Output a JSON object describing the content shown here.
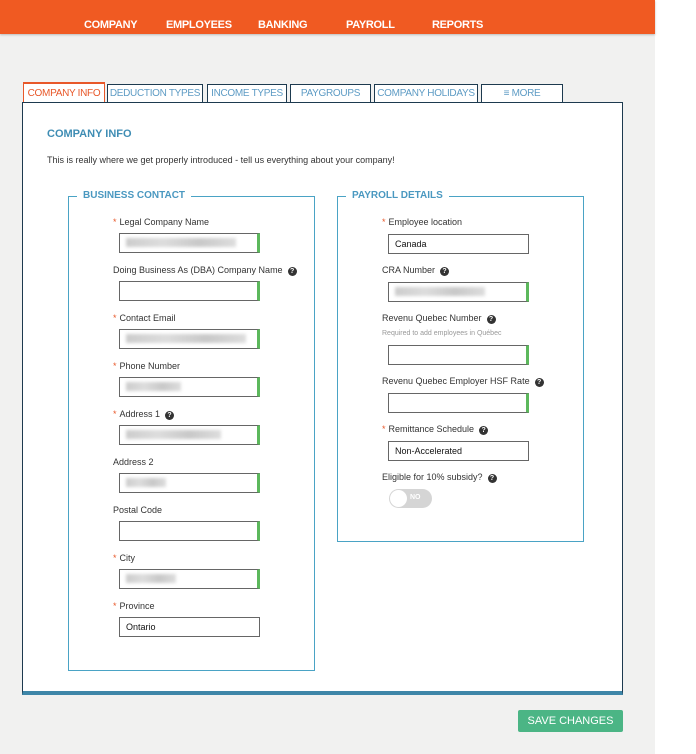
{
  "nav": [
    "COMPANY",
    "EMPLOYEES",
    "BANKING",
    "PAYROLL",
    "REPORTS"
  ],
  "tabs": [
    "COMPANY INFO",
    "DEDUCTION TYPES",
    "INCOME TYPES",
    "PAYGROUPS",
    "COMPANY HOLIDAYS",
    "MORE"
  ],
  "heading": "COMPANY INFO",
  "intro": "This is really where we get properly introduced - tell us everything about your company!",
  "business": {
    "legend": "BUSINESS CONTACT",
    "fields": [
      {
        "label": "Legal Company Name",
        "required": true
      },
      {
        "label": "Doing Business As (DBA) Company Name",
        "help": true
      },
      {
        "label": "Contact Email",
        "required": true
      },
      {
        "label": "Phone Number",
        "required": true
      },
      {
        "label": "Address 1",
        "required": true,
        "help": true
      },
      {
        "label": "Address 2"
      },
      {
        "label": "Postal Code"
      },
      {
        "label": "City",
        "required": true
      },
      {
        "label": "Province",
        "required": true,
        "value": "Ontario"
      }
    ]
  },
  "payroll": {
    "legend": "PAYROLL DETAILS",
    "location_label": "Employee location",
    "location_value": "Canada",
    "cra_label": "CRA Number",
    "rq_label": "Revenu Quebec Number",
    "rq_help": "Required to add employees in Québec",
    "hsf_label": "Revenu Quebec Employer HSF Rate",
    "remit_label": "Remittance Schedule",
    "remit_value": "Non-Accelerated",
    "subsidy_label": "Eligible for 10% subsidy?",
    "subsidy_value": "NO"
  },
  "save": "SAVE CHANGES",
  "colors": {
    "brand": "#f05a22",
    "accent": "#3f8db4",
    "save": "#4bb585"
  }
}
